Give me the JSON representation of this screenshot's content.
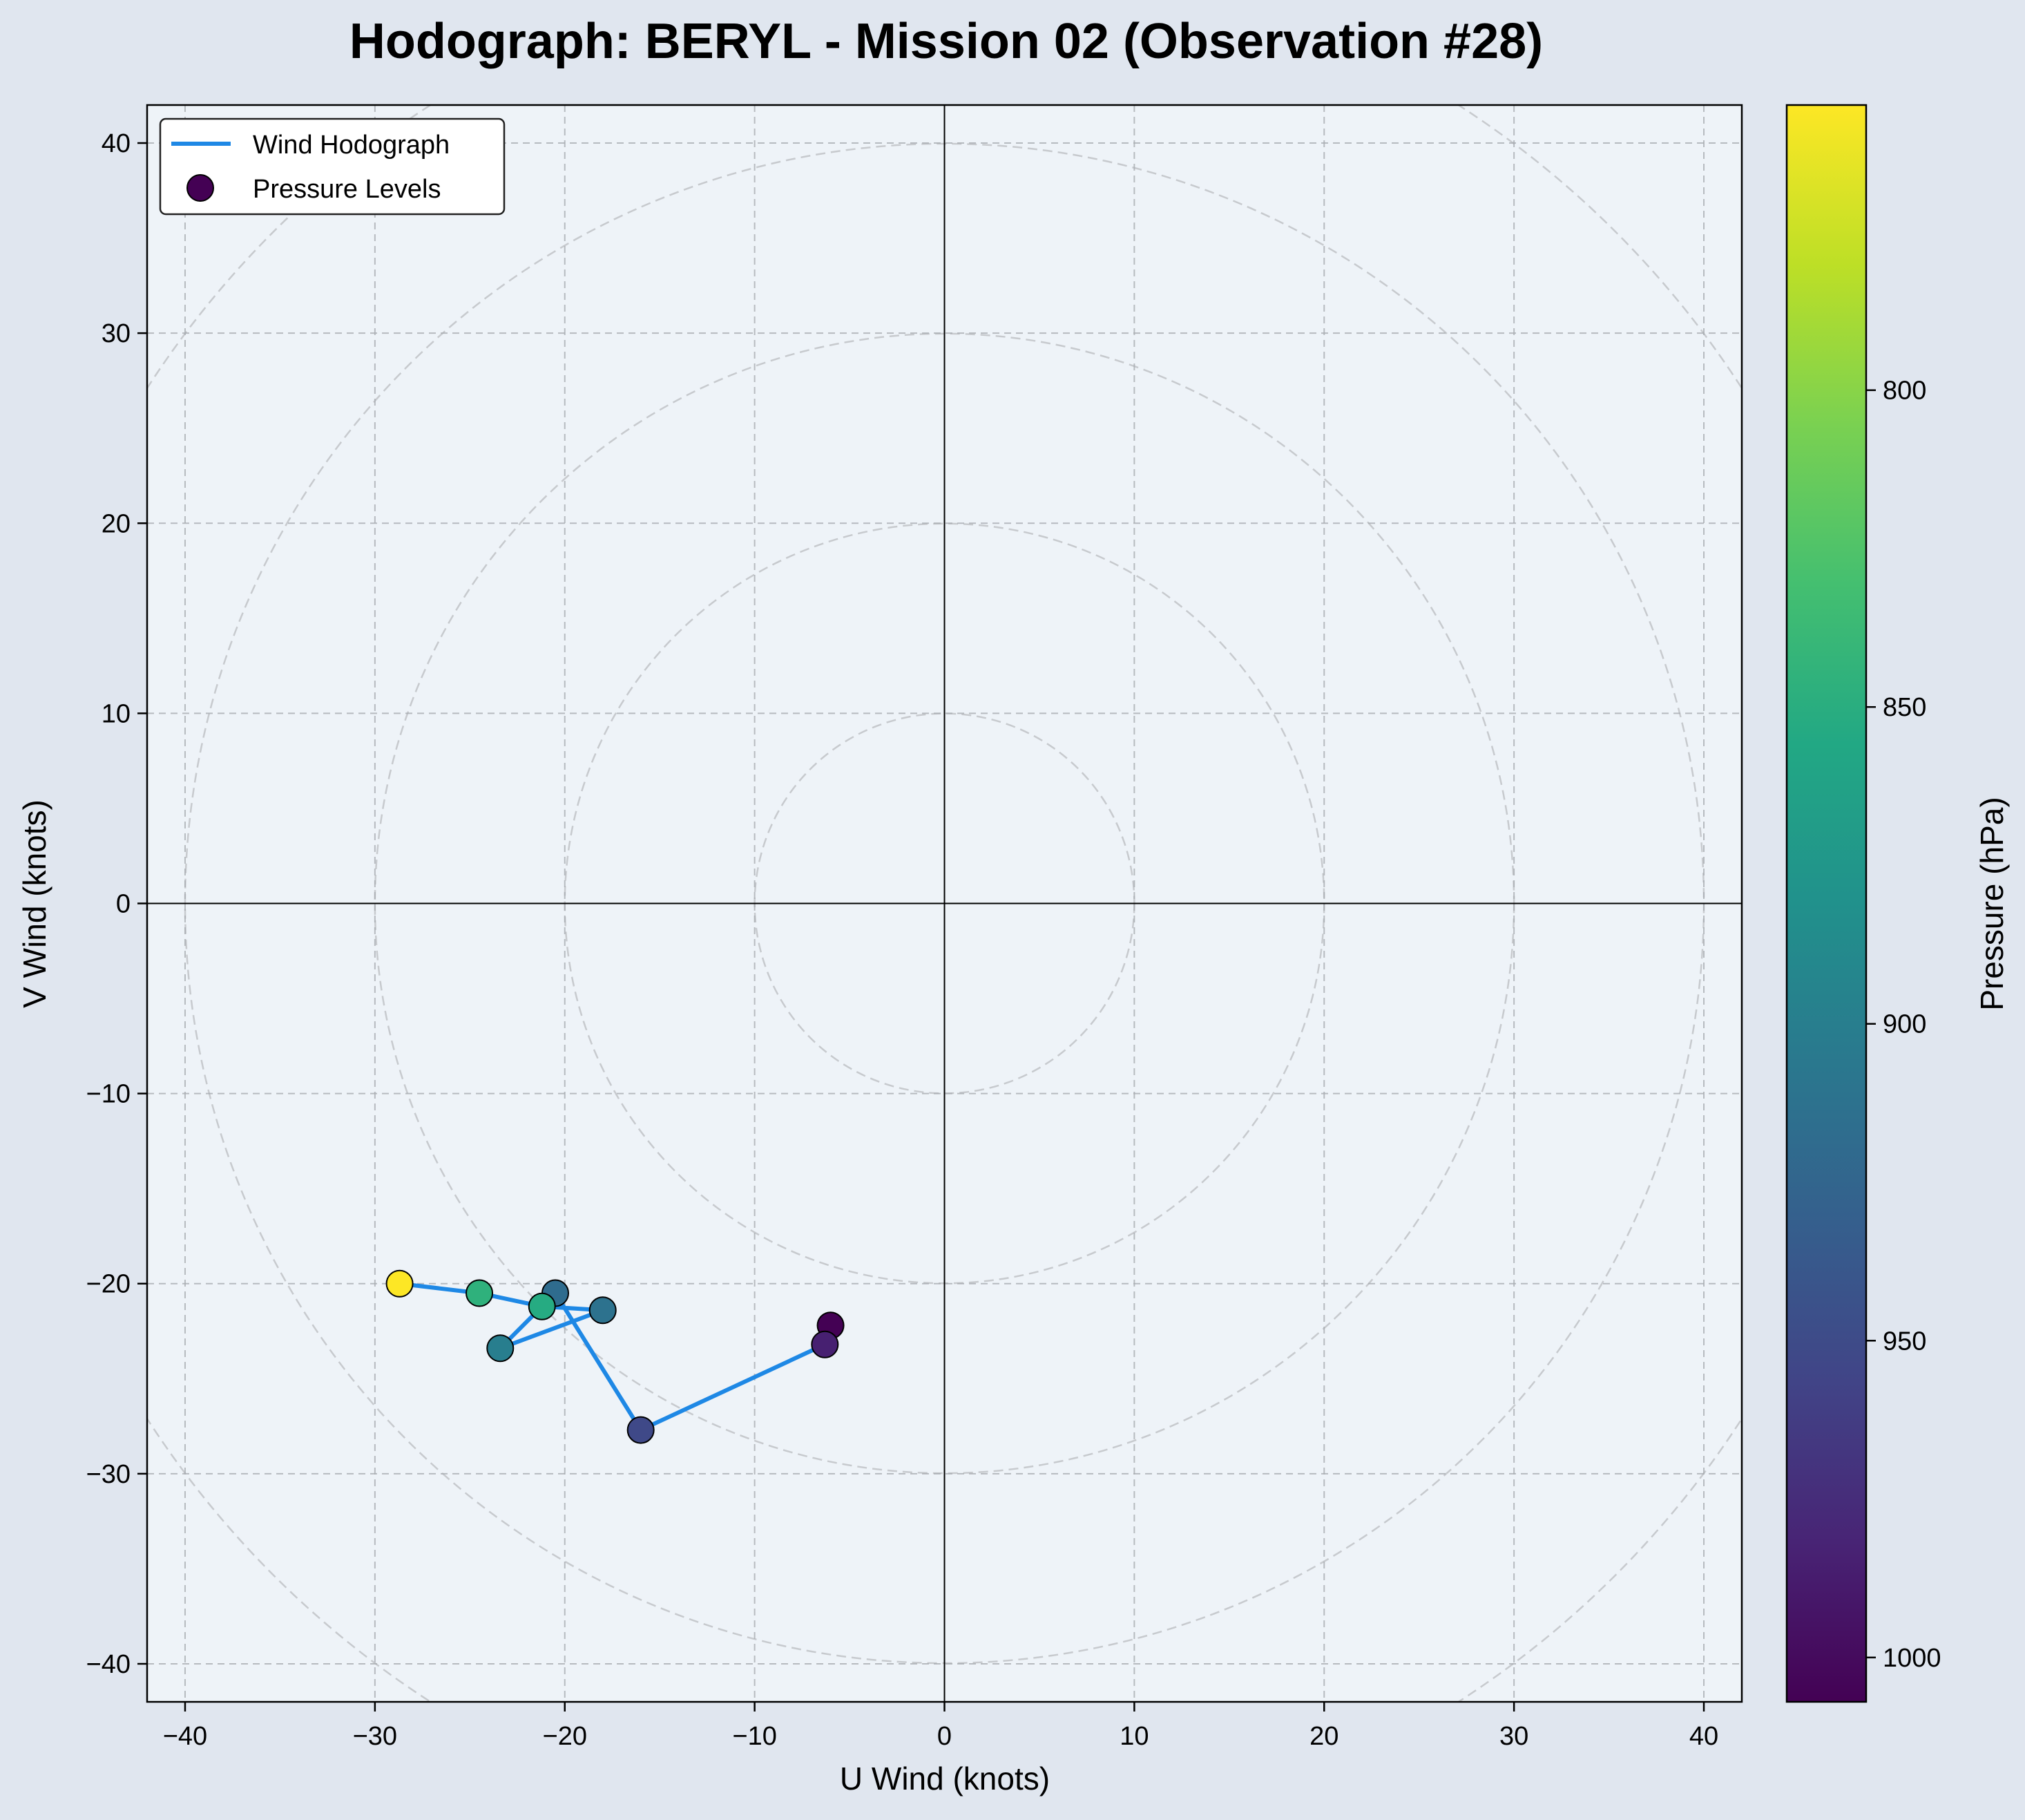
{
  "chart_data": {
    "type": "scatter",
    "title": "Hodograph: BERYL - Mission 02 (Observation #28)",
    "xlabel": "U Wind (knots)",
    "ylabel": "V Wind (knots)",
    "xlim": [
      -42,
      42
    ],
    "ylim": [
      -42,
      42
    ],
    "x_ticks": [
      -40,
      -30,
      -20,
      -10,
      0,
      10,
      20,
      30,
      40
    ],
    "y_ticks": [
      -40,
      -30,
      -20,
      -10,
      0,
      10,
      20,
      30,
      40
    ],
    "x_tick_labels": [
      "−40",
      "−30",
      "−20",
      "−10",
      "0",
      "10",
      "20",
      "30",
      "40"
    ],
    "y_tick_labels": [
      "−40",
      "−30",
      "−20",
      "−10",
      "0",
      "10",
      "20",
      "30",
      "40"
    ],
    "grid": true,
    "range_rings_knots": [
      10,
      20,
      30,
      40,
      50
    ],
    "legend_position": "top-left",
    "legend": [
      {
        "label": "Wind Hodograph",
        "kind": "line",
        "color": "#1e88e5"
      },
      {
        "label": "Pressure Levels",
        "kind": "marker",
        "color": "#440154"
      }
    ],
    "line_color": "#1e88e5",
    "series": [
      {
        "name": "Wind Hodograph",
        "points": [
          {
            "u": -6.0,
            "v": -22.2,
            "pressure": 1007
          },
          {
            "u": -6.3,
            "v": -23.2,
            "pressure": 985
          },
          {
            "u": -16.0,
            "v": -27.7,
            "pressure": 952
          },
          {
            "u": -20.5,
            "v": -20.5,
            "pressure": 918
          },
          {
            "u": -23.4,
            "v": -23.4,
            "pressure": 900
          },
          {
            "u": -18.0,
            "v": -21.4,
            "pressure": 912
          },
          {
            "u": -21.2,
            "v": -21.2,
            "pressure": 853
          },
          {
            "u": -24.5,
            "v": -20.5,
            "pressure": 846
          },
          {
            "u": -28.7,
            "v": -20.0,
            "pressure": 755
          }
        ]
      }
    ],
    "colorbar": {
      "label": "Pressure (hPa)",
      "range": [
        1007,
        755
      ],
      "ticks": [
        800,
        850,
        900,
        950,
        1000
      ],
      "tick_labels": [
        "800",
        "850",
        "900",
        "950",
        "1000"
      ],
      "colormap": "viridis"
    }
  }
}
